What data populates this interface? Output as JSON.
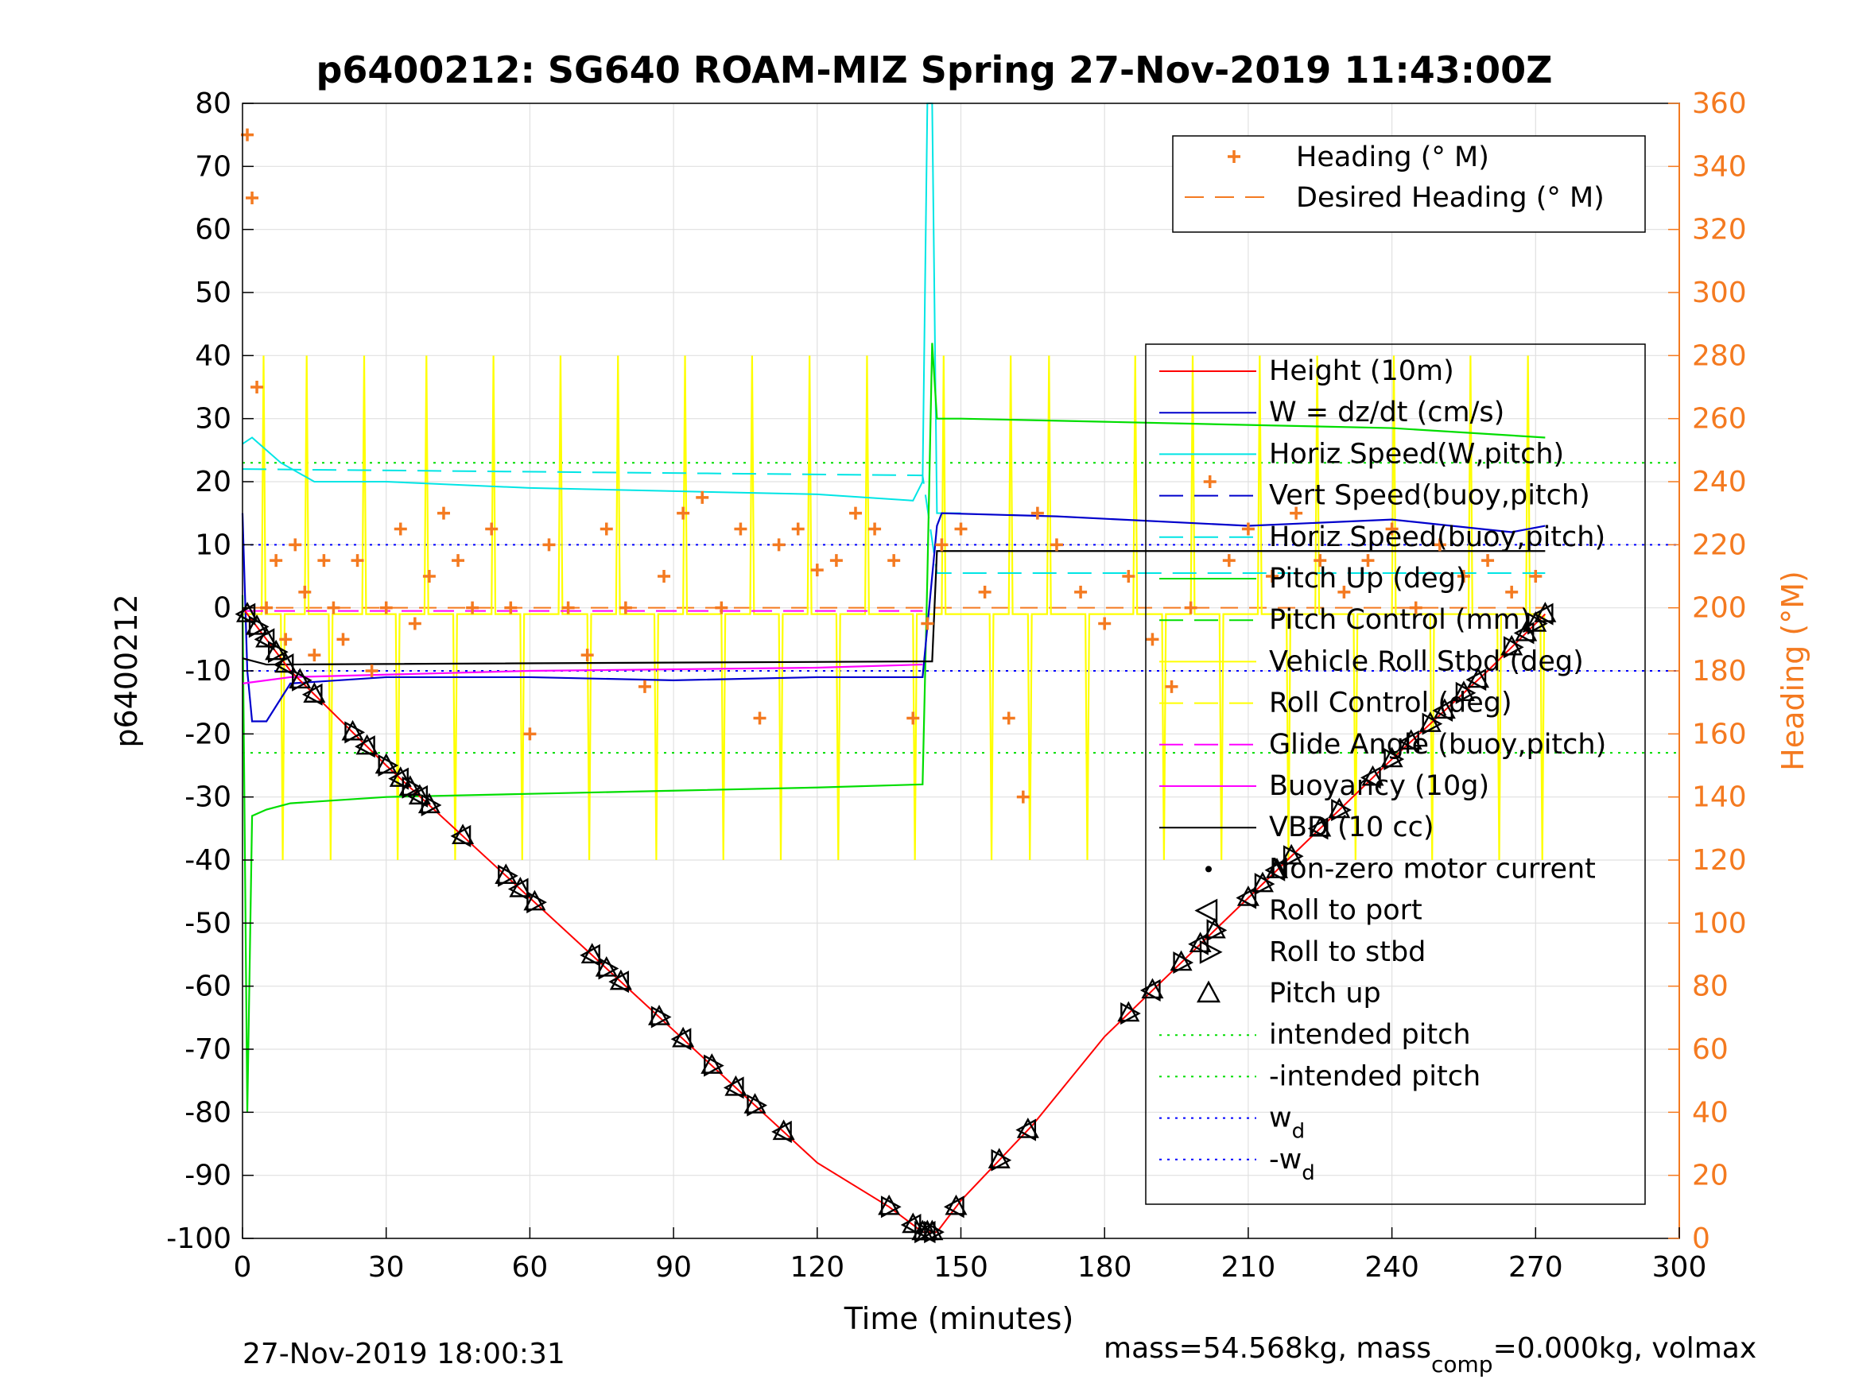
{
  "chart_data": {
    "type": "line",
    "title": "p6400212: SG640 ROAM-MIZ Spring 27-Nov-2019 11:43:00Z",
    "xlabel": "Time (minutes)",
    "ylabel": "p6400212",
    "y2label": "Heading (°M)",
    "xlim": [
      0,
      300
    ],
    "ylim": [
      -100,
      80
    ],
    "y2lim": [
      0,
      360
    ],
    "grid": true,
    "x_ticks": [
      "0",
      "30",
      "60",
      "90",
      "120",
      "150",
      "180",
      "210",
      "240",
      "270",
      "300"
    ],
    "y_ticks": [
      "80",
      "70",
      "60",
      "50",
      "40",
      "30",
      "20",
      "10",
      "0",
      "-10",
      "-20",
      "-30",
      "-40",
      "-50",
      "-60",
      "-70",
      "-80",
      "-90",
      "-100"
    ],
    "y2_ticks": [
      "360",
      "340",
      "320",
      "300",
      "280",
      "260",
      "240",
      "220",
      "200",
      "180",
      "160",
      "140",
      "120",
      "100",
      "80",
      "60",
      "40",
      "20",
      "0"
    ],
    "footer_left": "27-Nov-2019 18:00:31",
    "footer_right_prefix": "mass=54.568kg, mass",
    "footer_right_sub": "comp",
    "footer_right_suffix": "=0.000kg, volmax",
    "legend_top": [
      {
        "label": "Heading (° M)",
        "color": "#f47a20",
        "marker": "+"
      },
      {
        "label": "Desired Heading (° M)",
        "color": "#f47a20",
        "style": "dash"
      }
    ],
    "legend_main": [
      {
        "label": "Height (10m)",
        "color": "#ff0000",
        "style": "solid"
      },
      {
        "label": "W = dz/dt (cm/s)",
        "color": "#0000cc",
        "style": "solid"
      },
      {
        "label": "Horiz Speed(W,pitch)",
        "color": "#00e5e5",
        "style": "solid"
      },
      {
        "label": "Vert Speed(buoy,pitch)",
        "color": "#0000cc",
        "style": "dash"
      },
      {
        "label": "Horiz Speed(buoy,pitch)",
        "color": "#00e5e5",
        "style": "dash"
      },
      {
        "label": "Pitch Up (deg)",
        "color": "#00dd00",
        "style": "solid"
      },
      {
        "label": "Pitch Control (mm)",
        "color": "#00dd00",
        "style": "dash"
      },
      {
        "label": "Vehicle Roll Stbd (deg)",
        "color": "#ffff00",
        "style": "solid"
      },
      {
        "label": "Roll Control (deg)",
        "color": "#ffff00",
        "style": "dash"
      },
      {
        "label": "Glide Angle (buoy,pitch)",
        "color": "#ff00ff",
        "style": "dash"
      },
      {
        "label": "Buoyancy (10g)",
        "color": "#ff00ff",
        "style": "solid"
      },
      {
        "label": "VBD (10 cc)",
        "color": "#000000",
        "style": "solid"
      },
      {
        "label": "Non-zero motor current",
        "color": "#000000",
        "marker": "dot"
      },
      {
        "label": "Roll to port",
        "color": "#000000",
        "marker": "tri-left"
      },
      {
        "label": "Roll to stbd",
        "color": "#000000",
        "marker": "tri-right"
      },
      {
        "label": "Pitch up",
        "color": "#000000",
        "marker": "tri-up"
      },
      {
        "label": "intended pitch",
        "color": "#00dd00",
        "style": "dot"
      },
      {
        "label": "-intended pitch",
        "color": "#00dd00",
        "style": "dot"
      },
      {
        "label": "w",
        "sub": "d",
        "color": "#0000ff",
        "style": "dot"
      },
      {
        "label": "-w",
        "sub": "d",
        "color": "#0000ff",
        "style": "dot"
      }
    ],
    "height_profile": {
      "x": [
        0,
        10,
        30,
        60,
        90,
        120,
        135,
        142,
        145,
        150,
        165,
        180,
        210,
        240,
        260,
        272
      ],
      "y": [
        0,
        -10,
        -25,
        -46,
        -67,
        -88,
        -95,
        -99,
        -99,
        -94,
        -82,
        -68,
        -46,
        -24,
        -10,
        -1
      ]
    },
    "vbd": {
      "x": [
        0,
        5,
        142,
        144,
        145,
        265,
        272
      ],
      "y": [
        -8,
        -9,
        -8.5,
        -8.5,
        9,
        9,
        9
      ]
    },
    "w_cm_s": {
      "x": [
        0,
        1,
        2,
        5,
        10,
        30,
        60,
        90,
        120,
        142,
        145,
        146,
        170,
        210,
        240,
        265,
        272
      ],
      "y": [
        15,
        -10,
        -18,
        -18,
        -12,
        -11,
        -11,
        -11.5,
        -11,
        -11,
        13,
        15,
        14.5,
        13,
        14,
        12,
        13
      ]
    },
    "horiz_speed": {
      "x": [
        0,
        2,
        8,
        15,
        30,
        60,
        90,
        120,
        140,
        142,
        143,
        144,
        145,
        150
      ],
      "y": [
        26,
        27,
        23,
        20,
        20,
        19,
        18.5,
        18,
        17,
        20,
        80,
        80,
        15,
        15
      ]
    },
    "pitch_up": {
      "x": [
        0,
        1,
        2,
        5,
        10,
        30,
        60,
        90,
        120,
        142,
        143,
        144,
        145,
        150,
        180,
        210,
        240,
        272
      ],
      "y": [
        2,
        -80,
        -33,
        -32,
        -31,
        -30,
        -29.5,
        -29,
        -28.5,
        -28,
        5,
        42,
        30,
        30,
        29.5,
        29,
        28.5,
        27
      ]
    },
    "buoyancy": {
      "x": [
        0,
        10,
        60,
        120,
        142
      ],
      "y": [
        -12,
        -11,
        -10,
        -9.5,
        -9
      ]
    },
    "glide_angle": {
      "x": [
        0,
        142
      ],
      "y": [
        -0.5,
        -0.5
      ]
    },
    "horiz_speed_buoy": {
      "x": [
        0,
        142,
        145,
        272
      ],
      "y": [
        22,
        21,
        5.5,
        5.5
      ]
    },
    "intended_pitch": 23,
    "wd": 10,
    "desired_heading": 200,
    "heading_deg_M": {
      "x": [
        1,
        2,
        3,
        5,
        7,
        9,
        11,
        13,
        15,
        17,
        19,
        21,
        24,
        27,
        30,
        33,
        36,
        39,
        42,
        45,
        48,
        52,
        56,
        60,
        64,
        68,
        72,
        76,
        80,
        84,
        88,
        92,
        96,
        100,
        104,
        108,
        112,
        116,
        120,
        124,
        128,
        132,
        136,
        140,
        143,
        146,
        150,
        155,
        160,
        163,
        166,
        170,
        175,
        180,
        185,
        190,
        194,
        198,
        202,
        206,
        210,
        215,
        220,
        225,
        230,
        235,
        240,
        245,
        250,
        255,
        260,
        265,
        270
      ],
      "y": [
        350,
        330,
        270,
        200,
        215,
        190,
        220,
        205,
        185,
        215,
        200,
        190,
        215,
        180,
        200,
        225,
        195,
        210,
        230,
        215,
        200,
        225,
        200,
        160,
        220,
        200,
        185,
        225,
        200,
        175,
        210,
        230,
        235,
        200,
        225,
        165,
        220,
        225,
        212,
        215,
        230,
        225,
        215,
        165,
        195,
        220,
        225,
        205,
        165,
        140,
        230,
        220,
        205,
        195,
        210,
        190,
        175,
        200,
        240,
        215,
        225,
        210,
        230,
        215,
        205,
        215,
        225,
        200,
        220,
        210,
        215,
        205,
        210
      ]
    },
    "pitch_up_markers_x": [
      1,
      3,
      5,
      7,
      9,
      12,
      15,
      23,
      26,
      30,
      33,
      35,
      37,
      39,
      46,
      55,
      58,
      61,
      73,
      76,
      79,
      87,
      92,
      98,
      103,
      107,
      113,
      135,
      140,
      142,
      143,
      144,
      149,
      158,
      164,
      185,
      190,
      196,
      200,
      203,
      210,
      213,
      216,
      219,
      225,
      229,
      236,
      240,
      244,
      248,
      251,
      255,
      258,
      265,
      268,
      270,
      272
    ]
  }
}
